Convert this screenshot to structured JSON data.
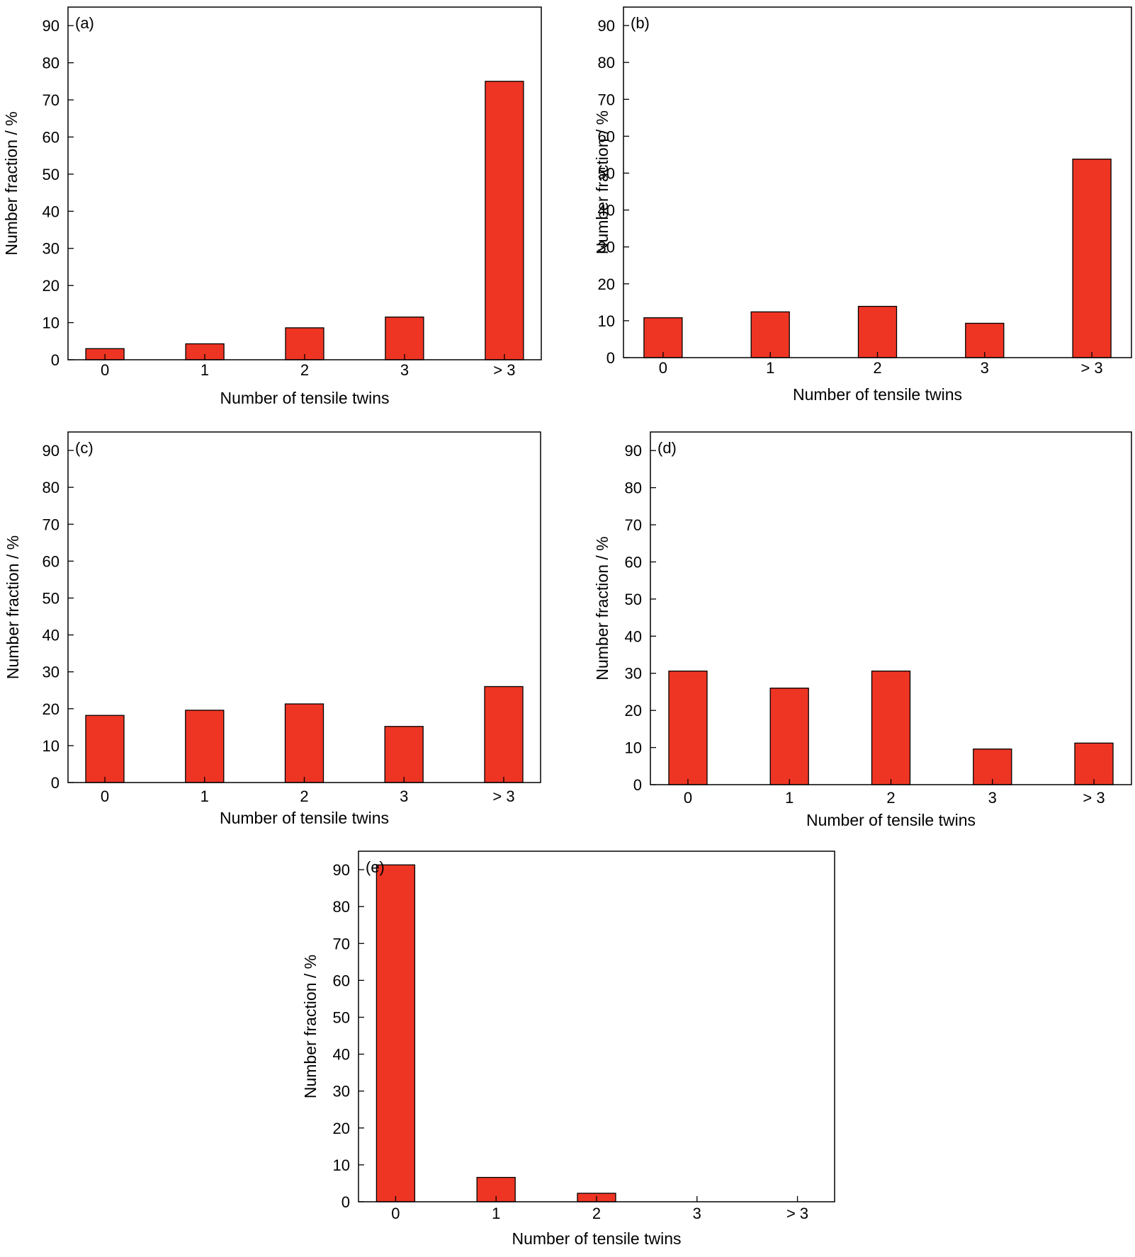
{
  "chart_data": [
    {
      "type": "bar",
      "panel_label": "(a)",
      "categories": [
        "0",
        "1",
        "2",
        "3",
        "> 3"
      ],
      "values": [
        3,
        4.3,
        8.6,
        11.5,
        75
      ],
      "xlabel": "Number of tensile twins",
      "ylabel": "Number fraction / %",
      "ylim": [
        0,
        95
      ],
      "yticks": [
        0,
        10,
        20,
        30,
        40,
        50,
        60,
        70,
        80,
        90
      ],
      "bar_color": "#ee3524",
      "grid": false,
      "legend": "none"
    },
    {
      "type": "bar",
      "panel_label": "(b)",
      "categories": [
        "0",
        "1",
        "2",
        "3",
        "> 3"
      ],
      "values": [
        10.8,
        12.4,
        13.9,
        9.3,
        53.8
      ],
      "xlabel": "Number of tensile twins",
      "ylabel": "Number fraction / %",
      "ylim": [
        0,
        95
      ],
      "yticks": [
        0,
        10,
        20,
        30,
        40,
        50,
        60,
        70,
        80,
        90
      ],
      "bar_color": "#ee3524",
      "grid": false,
      "legend": "none"
    },
    {
      "type": "bar",
      "panel_label": "(c)",
      "categories": [
        "0",
        "1",
        "2",
        "3",
        "> 3"
      ],
      "values": [
        18.2,
        19.6,
        21.3,
        15.2,
        26
      ],
      "xlabel": "Number of tensile twins",
      "ylabel": "Number fraction / %",
      "ylim": [
        0,
        95
      ],
      "yticks": [
        0,
        10,
        20,
        30,
        40,
        50,
        60,
        70,
        80,
        90
      ],
      "bar_color": "#ee3524",
      "grid": false,
      "legend": "none"
    },
    {
      "type": "bar",
      "panel_label": "(d)",
      "categories": [
        "0",
        "1",
        "2",
        "3",
        "> 3"
      ],
      "values": [
        30.6,
        26,
        30.6,
        9.6,
        11.2
      ],
      "xlabel": "Number of tensile twins",
      "ylabel": "Number fraction / %",
      "ylim": [
        0,
        95
      ],
      "yticks": [
        0,
        10,
        20,
        30,
        40,
        50,
        60,
        70,
        80,
        90
      ],
      "bar_color": "#ee3524",
      "grid": false,
      "legend": "none"
    },
    {
      "type": "bar",
      "panel_label": "(e)",
      "categories": [
        "0",
        "1",
        "2",
        "3",
        "> 3"
      ],
      "values": [
        91.3,
        6.6,
        2.3,
        0,
        0
      ],
      "xlabel": "Number of tensile twins",
      "ylabel": "Number fraction  / %",
      "ylim": [
        0,
        95
      ],
      "yticks": [
        0,
        10,
        20,
        30,
        40,
        50,
        60,
        70,
        80,
        90
      ],
      "bar_color": "#ee3524",
      "grid": false,
      "legend": "none"
    }
  ]
}
